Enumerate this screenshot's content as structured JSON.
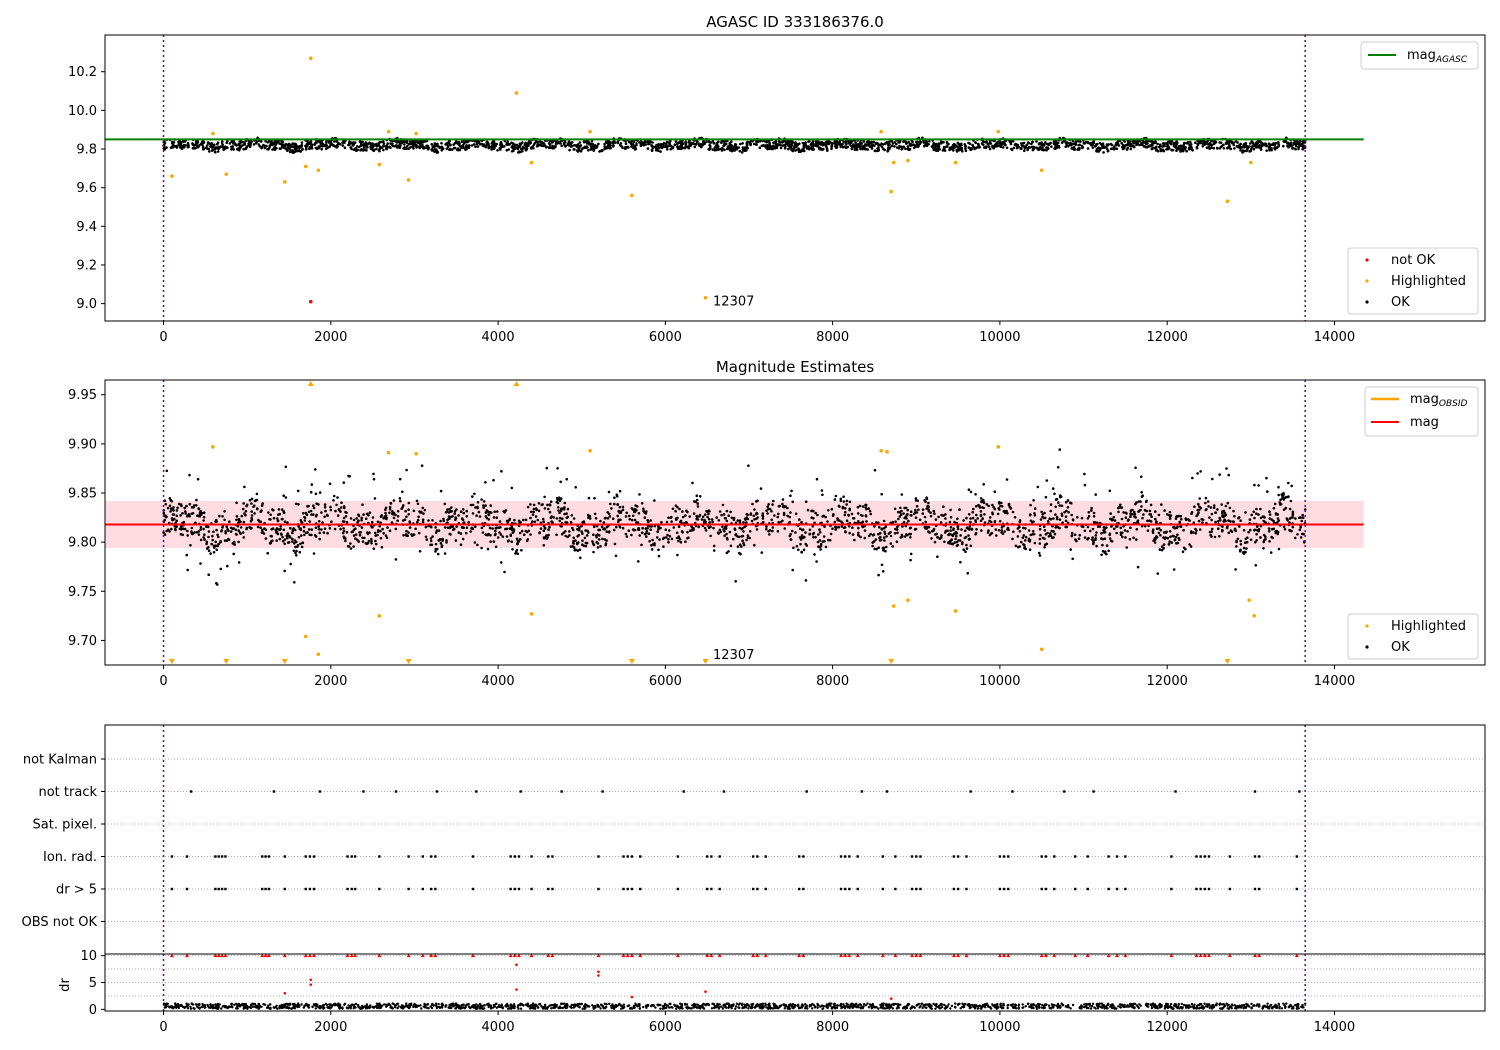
{
  "chart_data": [
    {
      "type": "scatter",
      "title": "AGASC ID 333186376.0",
      "xlim": [
        -700,
        15800
      ],
      "ylim": [
        8.91,
        10.39
      ],
      "xticks": [
        0,
        2000,
        4000,
        6000,
        8000,
        10000,
        12000,
        14000
      ],
      "yticks": [
        9.0,
        9.2,
        9.4,
        9.6,
        9.8,
        10.0,
        10.2
      ],
      "xtick_labels": [
        "0",
        "2000",
        "4000",
        "6000",
        "8000",
        "10000",
        "12000",
        "14000"
      ],
      "ytick_labels": [
        "9.0",
        "9.2",
        "9.4",
        "9.6",
        "9.8",
        "10.0",
        "10.2"
      ],
      "vlines": [
        0,
        13650
      ],
      "hline": {
        "name": "mag_AGASC",
        "y": 9.85,
        "color": "#008000",
        "xrange": [
          -700,
          14350
        ]
      },
      "legend_top": {
        "label": "mag",
        "sub": "AGASC",
        "color": "#008000"
      },
      "legend_bottom": [
        {
          "label": "not OK",
          "color": "#ff0000"
        },
        {
          "label": "Highlighted",
          "color": "#ffa500"
        },
        {
          "label": "OK",
          "color": "#000000"
        }
      ],
      "annotation": {
        "text": "12307",
        "x": 6570,
        "y": 8.99
      },
      "ok_band": {
        "center": 9.82,
        "noise": 0.025
      },
      "highlighted": [
        [
          100,
          9.66
        ],
        [
          590,
          9.88
        ],
        [
          750,
          9.67
        ],
        [
          1450,
          9.63
        ],
        [
          1700,
          9.71
        ],
        [
          1760,
          10.27
        ],
        [
          1850,
          9.69
        ],
        [
          2580,
          9.72
        ],
        [
          2690,
          9.89
        ],
        [
          2930,
          9.64
        ],
        [
          3020,
          9.88
        ],
        [
          4220,
          10.09
        ],
        [
          4400,
          9.73
        ],
        [
          5100,
          9.89
        ],
        [
          5600,
          9.56
        ],
        [
          6480,
          9.03
        ],
        [
          8580,
          9.89
        ],
        [
          8700,
          9.58
        ],
        [
          8730,
          9.73
        ],
        [
          8900,
          9.74
        ],
        [
          9470,
          9.73
        ],
        [
          9980,
          9.89
        ],
        [
          10500,
          9.69
        ],
        [
          12720,
          9.53
        ],
        [
          13000,
          9.73
        ]
      ],
      "not_ok": [
        [
          1760,
          9.01
        ]
      ]
    },
    {
      "type": "scatter",
      "title": "Magnitude Estimates",
      "xlim": [
        -700,
        15800
      ],
      "ylim": [
        9.675,
        9.965
      ],
      "xticks": [
        0,
        2000,
        4000,
        6000,
        8000,
        10000,
        12000,
        14000
      ],
      "yticks": [
        9.7,
        9.75,
        9.8,
        9.85,
        9.9,
        9.95
      ],
      "xtick_labels": [
        "0",
        "2000",
        "4000",
        "6000",
        "8000",
        "10000",
        "12000",
        "14000"
      ],
      "ytick_labels": [
        "9.70",
        "9.75",
        "9.80",
        "9.85",
        "9.90",
        "9.95"
      ],
      "vlines": [
        0,
        13650
      ],
      "mag_line": {
        "name": "mag",
        "y": 9.818,
        "color": "#ff0000"
      },
      "band": {
        "y0": 9.794,
        "y1": 9.842,
        "color": "#ffc0c8"
      },
      "legend_top": [
        {
          "label": "mag",
          "sub": "OBSID",
          "color": "#ffa500"
        },
        {
          "label": "mag",
          "sub": "",
          "color": "#ff0000"
        }
      ],
      "legend_bottom": [
        {
          "label": "Highlighted",
          "color": "#ffa500"
        },
        {
          "label": "OK",
          "color": "#000000"
        }
      ],
      "annotation": {
        "text": "12307",
        "x": 6570,
        "y": 9.681
      },
      "ok_band": {
        "center": 9.818,
        "noise": 0.025
      },
      "highlighted": [
        [
          590,
          9.897
        ],
        [
          2690,
          9.891
        ],
        [
          3020,
          9.89
        ],
        [
          5100,
          9.893
        ],
        [
          8580,
          9.893
        ],
        [
          8650,
          9.892
        ],
        [
          9980,
          9.897
        ],
        [
          1700,
          9.704
        ],
        [
          1850,
          9.686
        ],
        [
          2580,
          9.725
        ],
        [
          4400,
          9.727
        ],
        [
          8730,
          9.735
        ],
        [
          8900,
          9.741
        ],
        [
          9470,
          9.73
        ],
        [
          10500,
          9.691
        ],
        [
          12980,
          9.741
        ],
        [
          13040,
          9.725
        ]
      ],
      "clip_up": [
        1760,
        4220
      ],
      "clip_down": [
        100,
        750,
        1450,
        2930,
        5600,
        6480,
        8700,
        12720
      ]
    },
    {
      "type": "event-flags",
      "categories": [
        "not Kalman",
        "not track",
        "Sat. pixel.",
        "Ion. rad.",
        "dr > 5",
        "OBS not OK"
      ],
      "xlim": [
        -700,
        15800
      ],
      "vlines": [
        0,
        13650
      ],
      "events": {
        "not track": [
          330,
          1320,
          1870,
          2390,
          2780,
          3270,
          3740,
          4270,
          4760,
          5250,
          6220,
          6700,
          7690,
          8350,
          8650,
          9650,
          10150,
          10770,
          11120,
          12100,
          13050,
          13580
        ],
        "Ion. rad.": [
          100,
          280,
          620,
          660,
          700,
          740,
          1180,
          1220,
          1260,
          1450,
          1700,
          1750,
          1800,
          2200,
          2250,
          2290,
          2580,
          2930,
          3100,
          3200,
          3250,
          3700,
          4150,
          4200,
          4250,
          4400,
          4600,
          4650,
          5200,
          5500,
          5550,
          5600,
          5700,
          6150,
          6500,
          6550,
          6650,
          7050,
          7100,
          7200,
          7600,
          7650,
          8100,
          8150,
          8200,
          8300,
          8600,
          8750,
          8950,
          9000,
          9050,
          9450,
          9500,
          9600,
          10000,
          10050,
          10100,
          10500,
          10550,
          10650,
          10900,
          11050,
          11300,
          11400,
          11500,
          12050,
          12350,
          12400,
          12450,
          12500,
          12750,
          13050,
          13100,
          13550
        ],
        "dr > 5": [
          100,
          280,
          620,
          660,
          700,
          740,
          1180,
          1220,
          1260,
          1450,
          1700,
          1750,
          1800,
          2200,
          2250,
          2290,
          2580,
          2930,
          3100,
          3200,
          3250,
          3700,
          4150,
          4200,
          4250,
          4400,
          4600,
          4650,
          5200,
          5500,
          5550,
          5600,
          5700,
          6150,
          6500,
          6550,
          6650,
          7050,
          7100,
          7200,
          7600,
          7650,
          8100,
          8150,
          8200,
          8300,
          8600,
          8750,
          8950,
          9000,
          9050,
          9450,
          9500,
          9600,
          10000,
          10050,
          10100,
          10500,
          10550,
          10650,
          10900,
          11050,
          11300,
          11400,
          11500,
          12050,
          12350,
          12400,
          12450,
          12500,
          12750,
          13050,
          13100,
          13550
        ]
      }
    },
    {
      "type": "scatter",
      "ylabel": "dr",
      "xlim": [
        -700,
        15800
      ],
      "ylim": [
        -0.3,
        10.3
      ],
      "xticks": [
        0,
        2000,
        4000,
        6000,
        8000,
        10000,
        12000,
        14000
      ],
      "yticks": [
        0,
        5,
        10
      ],
      "xtick_labels": [
        "0",
        "2000",
        "4000",
        "6000",
        "8000",
        "10000",
        "12000",
        "14000"
      ],
      "ytick_labels": [
        "0",
        "5",
        "10"
      ],
      "vlines": [
        0,
        13650
      ],
      "ok_band": {
        "center": 0.6,
        "noise": 0.3
      },
      "clipped_x": [
        100,
        280,
        620,
        660,
        700,
        740,
        1180,
        1220,
        1260,
        1450,
        1700,
        1750,
        1800,
        2200,
        2250,
        2290,
        2580,
        2930,
        3100,
        3200,
        3250,
        3700,
        4150,
        4200,
        4250,
        4400,
        4600,
        4650,
        5200,
        5500,
        5550,
        5600,
        5700,
        6150,
        6500,
        6550,
        6650,
        7050,
        7100,
        7200,
        7600,
        7650,
        8100,
        8150,
        8200,
        8300,
        8600,
        8750,
        8950,
        9000,
        9050,
        9450,
        9500,
        9600,
        10000,
        10050,
        10100,
        10500,
        10550,
        10650,
        10900,
        11050,
        11300,
        11400,
        11500,
        12050,
        12350,
        12400,
        12450,
        12500,
        12750,
        13050,
        13100,
        13550
      ],
      "outliers": [
        [
          1450,
          3.0
        ],
        [
          1760,
          5.5
        ],
        [
          1760,
          4.6
        ],
        [
          4220,
          8.3
        ],
        [
          4220,
          3.7
        ],
        [
          5200,
          7.0
        ],
        [
          5200,
          6.3
        ],
        [
          6480,
          3.3
        ],
        [
          5600,
          2.3
        ],
        [
          8700,
          2.0
        ]
      ]
    }
  ]
}
